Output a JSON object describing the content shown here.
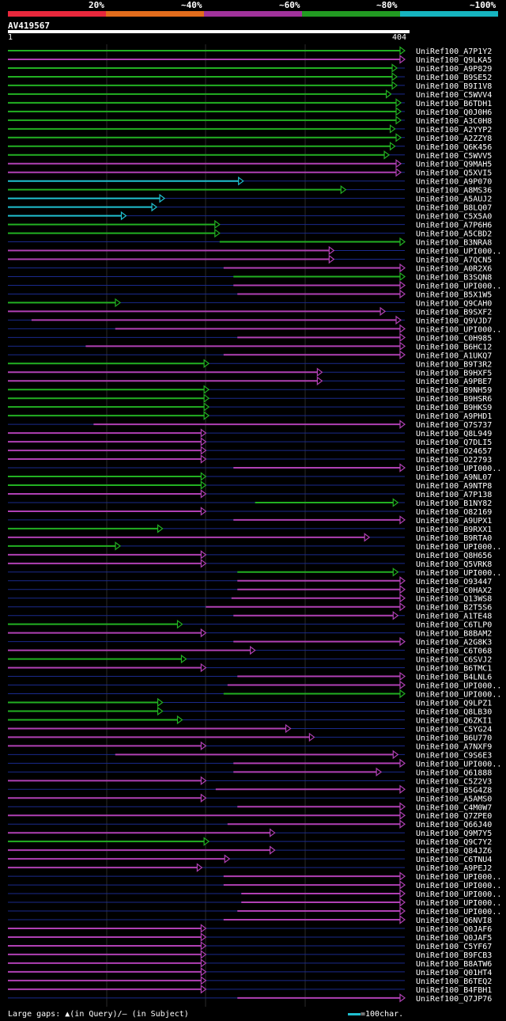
{
  "header": {
    "legend": [
      {
        "label": "20%",
        "color": "#e8283c"
      },
      {
        "label": "~40%",
        "color": "#e26c1c"
      },
      {
        "label": "~60%",
        "color": "#a0329b"
      },
      {
        "label": "~80%",
        "color": "#229a22"
      },
      {
        "label": "~100%",
        "color": "#16b4c0"
      }
    ],
    "query_id": "AV419567",
    "ruler_start": "1",
    "ruler_end": "404"
  },
  "colors": {
    "green": "#22b022",
    "magenta": "#b040b4",
    "cyan": "#20c0d0",
    "gap": "#1a2a8c"
  },
  "hits": [
    {
      "id": "UniRef100_A7P1Y2",
      "c": "green",
      "s": 1,
      "e": 404
    },
    {
      "id": "UniRef100_Q9LKA5",
      "c": "magenta",
      "s": 1,
      "e": 404
    },
    {
      "id": "UniRef100_A9P829",
      "c": "green",
      "s": 1,
      "e": 396
    },
    {
      "id": "UniRef100_B9SE52",
      "c": "green",
      "s": 1,
      "e": 396
    },
    {
      "id": "UniRef100_B9I1V8",
      "c": "green",
      "s": 1,
      "e": 396
    },
    {
      "id": "UniRef100_C5WVV4",
      "c": "green",
      "s": 1,
      "e": 390
    },
    {
      "id": "UniRef100_B6TDH1",
      "c": "green",
      "s": 1,
      "e": 400
    },
    {
      "id": "UniRef100_Q0J0H6",
      "c": "green",
      "s": 1,
      "e": 400
    },
    {
      "id": "UniRef100_A3C0H8",
      "c": "green",
      "s": 1,
      "e": 400
    },
    {
      "id": "UniRef100_A2YYP2",
      "c": "green",
      "s": 1,
      "e": 394
    },
    {
      "id": "UniRef100_A2ZZY8",
      "c": "green",
      "s": 1,
      "e": 400
    },
    {
      "id": "UniRef100_Q6K456",
      "c": "green",
      "s": 1,
      "e": 394
    },
    {
      "id": "UniRef100_C5WVV5",
      "c": "green",
      "s": 1,
      "e": 388
    },
    {
      "id": "UniRef100_Q9MAH5",
      "c": "magenta",
      "s": 1,
      "e": 400
    },
    {
      "id": "UniRef100_Q5XVI5",
      "c": "magenta",
      "s": 1,
      "e": 400
    },
    {
      "id": "UniRef100_A9P070",
      "c": "cyan",
      "s": 1,
      "e": 240
    },
    {
      "id": "UniRef100_A8MS36",
      "c": "green",
      "s": 1,
      "e": 344
    },
    {
      "id": "UniRef100_A5AUJ2",
      "c": "cyan",
      "s": 1,
      "e": 160
    },
    {
      "id": "UniRef100_B8LQ07",
      "c": "cyan",
      "s": 1,
      "e": 152
    },
    {
      "id": "UniRef100_C5X5A0",
      "c": "cyan",
      "s": 1,
      "e": 121
    },
    {
      "id": "UniRef100_A7P6H6",
      "c": "green",
      "s": 1,
      "e": 216
    },
    {
      "id": "UniRef100_A5CBD2",
      "c": "green",
      "s": 1,
      "e": 216
    },
    {
      "id": "UniRef100_B3NRA8",
      "c": "green",
      "s": 216,
      "e": 404
    },
    {
      "id": "UniRef100_UPI000..",
      "c": "magenta",
      "s": 1,
      "e": 332
    },
    {
      "id": "UniRef100_A7QCN5",
      "c": "magenta",
      "s": 1,
      "e": 332
    },
    {
      "id": "UniRef100_A0R2X6",
      "c": "magenta",
      "s": 220,
      "e": 404
    },
    {
      "id": "UniRef100_B3SQN8",
      "c": "green",
      "s": 230,
      "e": 404
    },
    {
      "id": "UniRef100_UPI000..",
      "c": "magenta",
      "s": 230,
      "e": 404
    },
    {
      "id": "UniRef100_B5X1W5",
      "c": "magenta",
      "s": 234,
      "e": 404
    },
    {
      "id": "UniRef100_Q9CAH0",
      "c": "green",
      "s": 1,
      "e": 115
    },
    {
      "id": "UniRef100_B9SXF2",
      "c": "magenta",
      "s": 1,
      "e": 384
    },
    {
      "id": "UniRef100_Q9VJD7",
      "c": "magenta",
      "s": 25,
      "e": 400
    },
    {
      "id": "UniRef100_UPI000..",
      "c": "magenta",
      "s": 110,
      "e": 404
    },
    {
      "id": "UniRef100_C0H985",
      "c": "magenta",
      "s": 234,
      "e": 404
    },
    {
      "id": "UniRef100_B6HC12",
      "c": "magenta",
      "s": 80,
      "e": 404
    },
    {
      "id": "UniRef100_A1UKQ7",
      "c": "magenta",
      "s": 220,
      "e": 404
    },
    {
      "id": "UniRef100_B9T3R2",
      "c": "green",
      "s": 1,
      "e": 205
    },
    {
      "id": "UniRef100_B9HXF5",
      "c": "magenta",
      "s": 1,
      "e": 320
    },
    {
      "id": "UniRef100_A9PBE7",
      "c": "magenta",
      "s": 1,
      "e": 320
    },
    {
      "id": "UniRef100_B9NH59",
      "c": "green",
      "s": 1,
      "e": 205
    },
    {
      "id": "UniRef100_B9HSR6",
      "c": "green",
      "s": 1,
      "e": 205
    },
    {
      "id": "UniRef100_B9HKS9",
      "c": "green",
      "s": 1,
      "e": 205
    },
    {
      "id": "UniRef100_A9PHD1",
      "c": "green",
      "s": 1,
      "e": 205
    },
    {
      "id": "UniRef100_Q7S737",
      "c": "magenta",
      "s": 88,
      "e": 404
    },
    {
      "id": "UniRef100_Q8L949",
      "c": "magenta",
      "s": 1,
      "e": 202
    },
    {
      "id": "UniRef100_Q7DLI5",
      "c": "magenta",
      "s": 1,
      "e": 202
    },
    {
      "id": "UniRef100_O24657",
      "c": "magenta",
      "s": 1,
      "e": 202
    },
    {
      "id": "UniRef100_O22793",
      "c": "magenta",
      "s": 1,
      "e": 202
    },
    {
      "id": "UniRef100_UPI000..",
      "c": "magenta",
      "s": 230,
      "e": 404
    },
    {
      "id": "UniRef100_A9NL07",
      "c": "green",
      "s": 1,
      "e": 202
    },
    {
      "id": "UniRef100_A9NTP8",
      "c": "green",
      "s": 1,
      "e": 202
    },
    {
      "id": "UniRef100_A7P138",
      "c": "magenta",
      "s": 1,
      "e": 202
    },
    {
      "id": "UniRef100_B1NY82",
      "c": "green",
      "s": 252,
      "e": 397
    },
    {
      "id": "UniRef100_O82169",
      "c": "magenta",
      "s": 1,
      "e": 202
    },
    {
      "id": "UniRef100_A9UPX1",
      "c": "magenta",
      "s": 230,
      "e": 404
    },
    {
      "id": "UniRef100_B9RXX1",
      "c": "green",
      "s": 1,
      "e": 158
    },
    {
      "id": "UniRef100_B9RTA0",
      "c": "magenta",
      "s": 1,
      "e": 368
    },
    {
      "id": "UniRef100_UPI000..",
      "c": "green",
      "s": 1,
      "e": 115
    },
    {
      "id": "UniRef100_Q8H656",
      "c": "magenta",
      "s": 1,
      "e": 202
    },
    {
      "id": "UniRef100_Q5VRK8",
      "c": "magenta",
      "s": 1,
      "e": 202
    },
    {
      "id": "UniRef100_UPI000..",
      "c": "green",
      "s": 234,
      "e": 397
    },
    {
      "id": "UniRef100_O93447",
      "c": "magenta",
      "s": 234,
      "e": 404
    },
    {
      "id": "UniRef100_C0HAX2",
      "c": "magenta",
      "s": 234,
      "e": 404
    },
    {
      "id": "UniRef100_Q13WS8",
      "c": "magenta",
      "s": 228,
      "e": 404
    },
    {
      "id": "UniRef100_B2T5S6",
      "c": "magenta",
      "s": 202,
      "e": 404
    },
    {
      "id": "UniRef100_A1TE48",
      "c": "magenta",
      "s": 230,
      "e": 397
    },
    {
      "id": "UniRef100_C6TLP0",
      "c": "green",
      "s": 1,
      "e": 178
    },
    {
      "id": "UniRef100_B8BAM2",
      "c": "magenta",
      "s": 1,
      "e": 202
    },
    {
      "id": "UniRef100_A2G8K3",
      "c": "magenta",
      "s": 230,
      "e": 404
    },
    {
      "id": "UniRef100_C6T068",
      "c": "magenta",
      "s": 1,
      "e": 252
    },
    {
      "id": "UniRef100_C6SVJ2",
      "c": "green",
      "s": 1,
      "e": 182
    },
    {
      "id": "UniRef100_B6TMC1",
      "c": "magenta",
      "s": 1,
      "e": 202
    },
    {
      "id": "UniRef100_B4LNL6",
      "c": "magenta",
      "s": 234,
      "e": 404
    },
    {
      "id": "UniRef100_UPI000..",
      "c": "magenta",
      "s": 224,
      "e": 404
    },
    {
      "id": "UniRef100_UPI000..",
      "c": "green",
      "s": 220,
      "e": 404
    },
    {
      "id": "UniRef100_Q9LPZ1",
      "c": "green",
      "s": 1,
      "e": 158
    },
    {
      "id": "UniRef100_Q8LB30",
      "c": "green",
      "s": 1,
      "e": 158
    },
    {
      "id": "UniRef100_Q6ZKI1",
      "c": "green",
      "s": 1,
      "e": 178
    },
    {
      "id": "UniRef100_C5YG24",
      "c": "magenta",
      "s": 1,
      "e": 288
    },
    {
      "id": "UniRef100_B6U770",
      "c": "magenta",
      "s": 1,
      "e": 312
    },
    {
      "id": "UniRef100_A7NXF9",
      "c": "magenta",
      "s": 1,
      "e": 202
    },
    {
      "id": "UniRef100_C9S6E3",
      "c": "magenta",
      "s": 110,
      "e": 397
    },
    {
      "id": "UniRef100_UPI000..",
      "c": "magenta",
      "s": 230,
      "e": 404
    },
    {
      "id": "UniRef100_Q61888",
      "c": "magenta",
      "s": 230,
      "e": 380
    },
    {
      "id": "UniRef100_C5Z2V3",
      "c": "magenta",
      "s": 1,
      "e": 202
    },
    {
      "id": "UniRef100_B5G4Z8",
      "c": "magenta",
      "s": 212,
      "e": 404
    },
    {
      "id": "UniRef100_A5AMS0",
      "c": "magenta",
      "s": 1,
      "e": 202
    },
    {
      "id": "UniRef100_C4M0W7",
      "c": "magenta",
      "s": 234,
      "e": 404
    },
    {
      "id": "UniRef100_Q7ZPE0",
      "c": "magenta",
      "s": 1,
      "e": 404
    },
    {
      "id": "UniRef100_Q66J40",
      "c": "magenta",
      "s": 224,
      "e": 404
    },
    {
      "id": "UniRef100_Q9M7Y5",
      "c": "magenta",
      "s": 1,
      "e": 272
    },
    {
      "id": "UniRef100_Q9C7Y2",
      "c": "green",
      "s": 1,
      "e": 205
    },
    {
      "id": "UniRef100_Q84JZ6",
      "c": "magenta",
      "s": 1,
      "e": 272
    },
    {
      "id": "UniRef100_C6TNU4",
      "c": "magenta",
      "s": 1,
      "e": 226
    },
    {
      "id": "UniRef100_A9PEJ2",
      "c": "magenta",
      "s": 1,
      "e": 198
    },
    {
      "id": "UniRef100_UPI000..",
      "c": "magenta",
      "s": 220,
      "e": 404
    },
    {
      "id": "UniRef100_UPI000..",
      "c": "magenta",
      "s": 220,
      "e": 404
    },
    {
      "id": "UniRef100_UPI000..",
      "c": "magenta",
      "s": 238,
      "e": 404
    },
    {
      "id": "UniRef100_UPI000..",
      "c": "magenta",
      "s": 238,
      "e": 404
    },
    {
      "id": "UniRef100_UPI000..",
      "c": "magenta",
      "s": 234,
      "e": 404
    },
    {
      "id": "UniRef100_Q6NVI8",
      "c": "magenta",
      "s": 220,
      "e": 404
    },
    {
      "id": "UniRef100_Q0JAF6",
      "c": "magenta",
      "s": 1,
      "e": 202
    },
    {
      "id": "UniRef100_Q0JAF5",
      "c": "magenta",
      "s": 1,
      "e": 202
    },
    {
      "id": "UniRef100_C5YF67",
      "c": "magenta",
      "s": 1,
      "e": 202
    },
    {
      "id": "UniRef100_B9FCB3",
      "c": "magenta",
      "s": 1,
      "e": 202
    },
    {
      "id": "UniRef100_B8ATW6",
      "c": "magenta",
      "s": 1,
      "e": 202
    },
    {
      "id": "UniRef100_Q01HT4",
      "c": "magenta",
      "s": 1,
      "e": 202
    },
    {
      "id": "UniRef100_B6TEQ2",
      "c": "magenta",
      "s": 1,
      "e": 202
    },
    {
      "id": "UniRef100_B4FBH1",
      "c": "magenta",
      "s": 1,
      "e": 202
    },
    {
      "id": "UniRef100_Q7JP76",
      "c": "magenta",
      "s": 234,
      "e": 404
    }
  ],
  "footer": {
    "gaps_label": "Large gaps: ",
    "query_note": "(in Query)/",
    "subject_note": " (in Subject)",
    "scale_label": "=100char."
  }
}
